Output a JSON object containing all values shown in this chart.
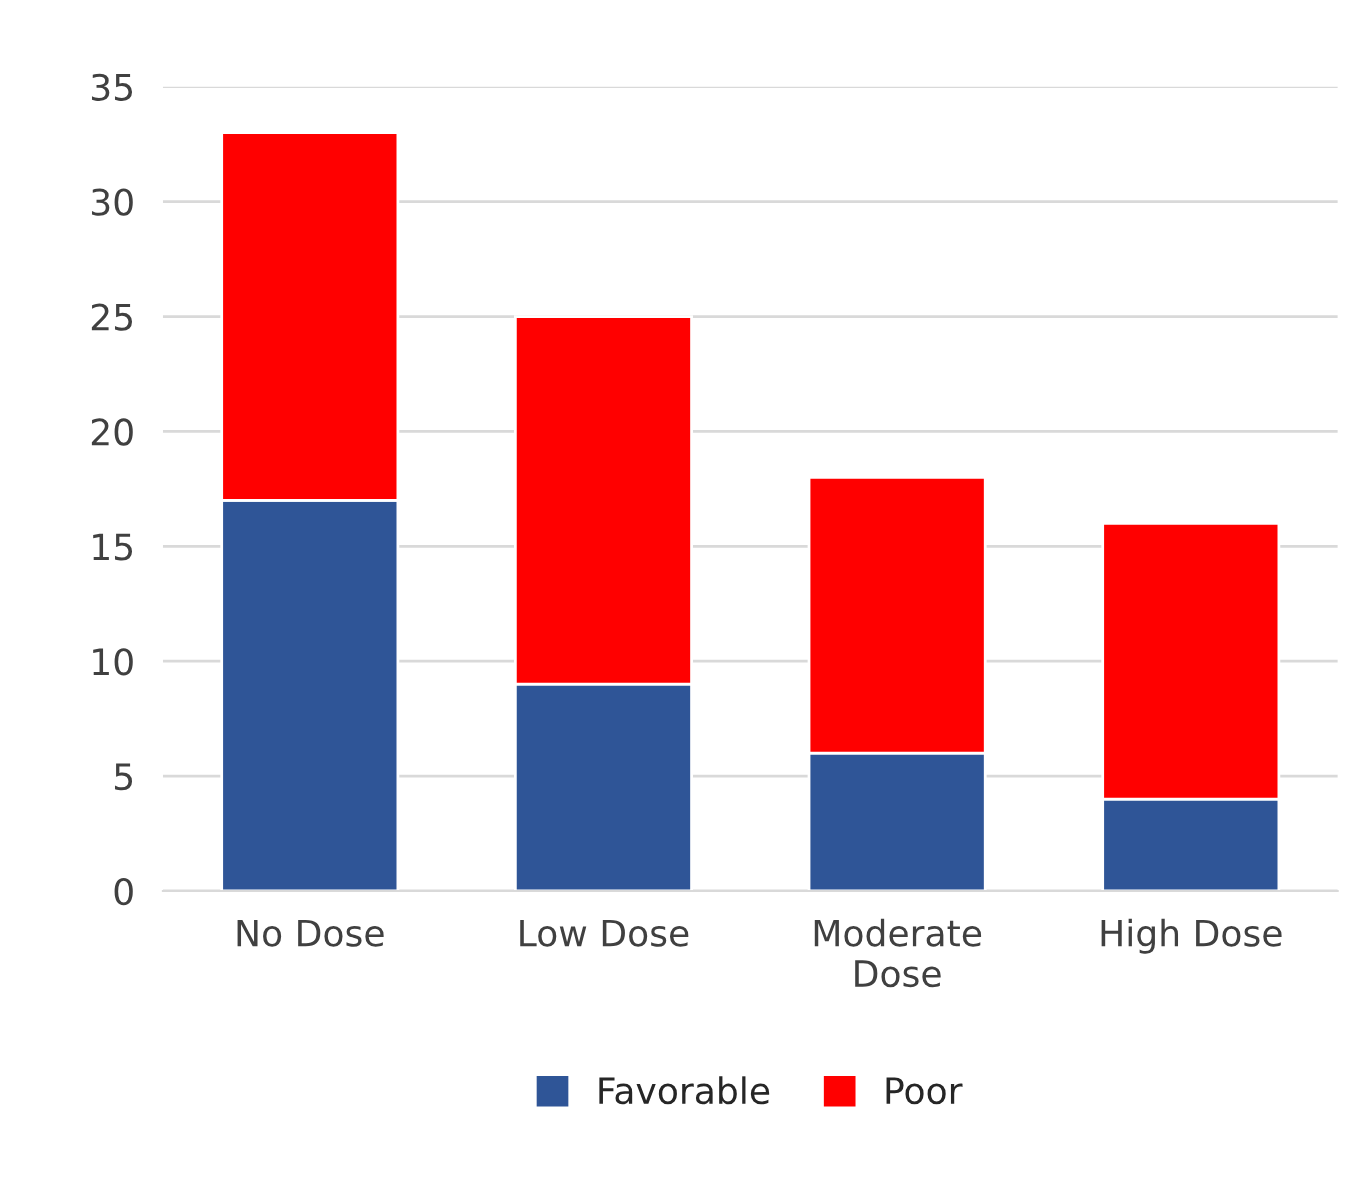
{
  "chart_data": {
    "type": "bar",
    "stacked": true,
    "categories": [
      "No Dose",
      "Low Dose",
      "Moderate Dose",
      "High Dose"
    ],
    "series": [
      {
        "name": "Favorable",
        "color": "#2f5597",
        "values": [
          17,
          9,
          6,
          4
        ]
      },
      {
        "name": "Poor",
        "color": "#ff0000",
        "values": [
          16,
          16,
          12,
          12
        ]
      }
    ],
    "ylim": [
      0,
      35
    ],
    "yticks": [
      0,
      5,
      10,
      15,
      20,
      25,
      30,
      35
    ],
    "grid": "y",
    "legend": "bottom"
  }
}
